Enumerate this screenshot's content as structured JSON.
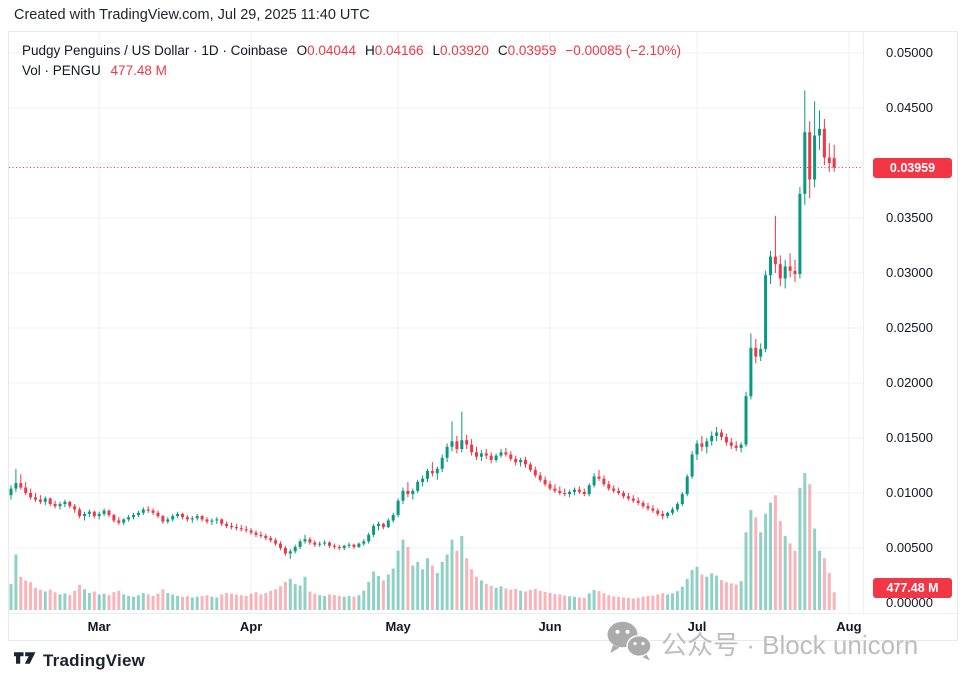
{
  "topbar": {
    "text": "Created with TradingView.com, Jul 29, 2025 11:40 UTC"
  },
  "legend": {
    "symbol": "Pudgy Penguins / US Dollar · 1D · Coinbase",
    "o_label": "O",
    "o_value": "0.04044",
    "h_label": "H",
    "h_value": "0.04166",
    "l_label": "L",
    "l_value": "0.03920",
    "c_label": "C",
    "c_value": "0.03959",
    "change": "−0.00085 (−2.10%)",
    "vol_label": "Vol · PENGU",
    "vol_value": "477.48 M"
  },
  "colors": {
    "up": "#089981",
    "down": "#f23645",
    "volume_up": "rgba(8,153,129,0.45)",
    "volume_down": "rgba(242,54,69,0.38)",
    "grid": "#eef1f7",
    "axis_text": "#131722",
    "badge": "#f23645",
    "watermark": "#bdbdbd"
  },
  "axis": {
    "price_ticks": [
      {
        "label": "0.05000",
        "value": 0.05
      },
      {
        "label": "0.04500",
        "value": 0.045
      },
      {
        "label": "0.03500",
        "value": 0.035
      },
      {
        "label": "0.03000",
        "value": 0.03
      },
      {
        "label": "0.02500",
        "value": 0.025
      },
      {
        "label": "0.02000",
        "value": 0.02
      },
      {
        "label": "0.01500",
        "value": 0.015
      },
      {
        "label": "0.01000",
        "value": 0.01
      },
      {
        "label": "0.00500",
        "value": 0.005
      },
      {
        "label": "0.00000",
        "value": 0
      }
    ],
    "last_price_label": "0.03959",
    "volume_label": "477.48 M",
    "months": [
      {
        "label": "Mar",
        "day": 18
      },
      {
        "label": "Apr",
        "day": 49
      },
      {
        "label": "May",
        "day": 79
      },
      {
        "label": "Jun",
        "day": 110
      },
      {
        "label": "Jul",
        "day": 140
      },
      {
        "label": "Aug",
        "day": 171
      }
    ]
  },
  "watermark": {
    "text": "公众号 · Block unicorn",
    "icon": "wechat-icon"
  },
  "footer": {
    "logo_text": "TradingView"
  },
  "chart_data": {
    "type": "candlestick",
    "title": "Pudgy Penguins / US Dollar",
    "interval": "1D",
    "exchange": "Coinbase",
    "current": {
      "open": 0.04044,
      "high": 0.04166,
      "low": 0.0392,
      "close": 0.03959,
      "change": -0.00085,
      "change_pct": -2.1,
      "volume": "477.48 M"
    },
    "last_price": 0.03959,
    "y_axis": {
      "min": 0,
      "max": 0.05,
      "step": 0.005
    },
    "x_axis_months": [
      "Mar",
      "Apr",
      "May",
      "Jun",
      "Jul",
      "Aug"
    ],
    "volume_axis_max": 3700,
    "volume_unit": "M",
    "candles_format": [
      "open",
      "high",
      "low",
      "close",
      "volume_M"
    ],
    "candles": [
      [
        0.0098,
        0.0107,
        0.0094,
        0.0104,
        700
      ],
      [
        0.0104,
        0.0122,
        0.0101,
        0.0109,
        1500
      ],
      [
        0.0109,
        0.0117,
        0.0103,
        0.0105,
        900
      ],
      [
        0.0105,
        0.011,
        0.0098,
        0.01,
        800
      ],
      [
        0.01,
        0.0104,
        0.0094,
        0.0096,
        750
      ],
      [
        0.0096,
        0.01,
        0.0092,
        0.0094,
        600
      ],
      [
        0.0094,
        0.0098,
        0.009,
        0.0092,
        550
      ],
      [
        0.0092,
        0.0097,
        0.0089,
        0.0095,
        500
      ],
      [
        0.0095,
        0.0096,
        0.0088,
        0.009,
        550
      ],
      [
        0.009,
        0.0093,
        0.0086,
        0.0088,
        480
      ],
      [
        0.0088,
        0.0092,
        0.0085,
        0.009,
        420
      ],
      [
        0.009,
        0.0094,
        0.0087,
        0.0092,
        450
      ],
      [
        0.0092,
        0.0093,
        0.0086,
        0.0088,
        400
      ],
      [
        0.0088,
        0.009,
        0.0082,
        0.0085,
        520
      ],
      [
        0.0085,
        0.0087,
        0.0077,
        0.0079,
        680
      ],
      [
        0.0079,
        0.0083,
        0.0075,
        0.0081,
        560
      ],
      [
        0.0081,
        0.0085,
        0.0078,
        0.0083,
        460
      ],
      [
        0.0083,
        0.0084,
        0.0077,
        0.0079,
        500
      ],
      [
        0.0079,
        0.0083,
        0.0076,
        0.0081,
        420
      ],
      [
        0.0081,
        0.0086,
        0.0079,
        0.0084,
        440
      ],
      [
        0.0084,
        0.0085,
        0.0078,
        0.008,
        400
      ],
      [
        0.008,
        0.0081,
        0.0073,
        0.0075,
        480
      ],
      [
        0.0075,
        0.0078,
        0.0071,
        0.0073,
        520
      ],
      [
        0.0073,
        0.0077,
        0.0071,
        0.0076,
        420
      ],
      [
        0.0076,
        0.008,
        0.0074,
        0.0078,
        380
      ],
      [
        0.0078,
        0.0082,
        0.0076,
        0.008,
        360
      ],
      [
        0.008,
        0.0084,
        0.0078,
        0.0082,
        400
      ],
      [
        0.0082,
        0.0087,
        0.008,
        0.0085,
        460
      ],
      [
        0.0085,
        0.0088,
        0.0082,
        0.0084,
        420
      ],
      [
        0.0084,
        0.0086,
        0.008,
        0.0082,
        380
      ],
      [
        0.0082,
        0.0084,
        0.0077,
        0.0079,
        440
      ],
      [
        0.0079,
        0.008,
        0.0072,
        0.0074,
        560
      ],
      [
        0.0074,
        0.0078,
        0.0072,
        0.0076,
        460
      ],
      [
        0.0076,
        0.0081,
        0.0074,
        0.0079,
        420
      ],
      [
        0.0079,
        0.0083,
        0.0077,
        0.0081,
        380
      ],
      [
        0.0081,
        0.0082,
        0.0076,
        0.0078,
        360
      ],
      [
        0.0078,
        0.008,
        0.0074,
        0.0076,
        380
      ],
      [
        0.0076,
        0.0079,
        0.0073,
        0.0077,
        340
      ],
      [
        0.0077,
        0.0081,
        0.0075,
        0.0079,
        360
      ],
      [
        0.0079,
        0.008,
        0.0074,
        0.0076,
        380
      ],
      [
        0.0076,
        0.0078,
        0.0072,
        0.0074,
        400
      ],
      [
        0.0074,
        0.0077,
        0.0071,
        0.0075,
        360
      ],
      [
        0.0075,
        0.0078,
        0.0072,
        0.0076,
        340
      ],
      [
        0.0076,
        0.0077,
        0.007,
        0.0072,
        420
      ],
      [
        0.0072,
        0.0074,
        0.0068,
        0.007,
        460
      ],
      [
        0.007,
        0.0073,
        0.0067,
        0.0069,
        440
      ],
      [
        0.0069,
        0.0072,
        0.0066,
        0.0068,
        420
      ],
      [
        0.0068,
        0.0071,
        0.0065,
        0.0067,
        400
      ],
      [
        0.0067,
        0.007,
        0.0064,
        0.0066,
        380
      ],
      [
        0.0066,
        0.0068,
        0.0062,
        0.0064,
        440
      ],
      [
        0.0064,
        0.0066,
        0.006,
        0.0062,
        480
      ],
      [
        0.0062,
        0.0065,
        0.0059,
        0.0061,
        420
      ],
      [
        0.0061,
        0.0063,
        0.0057,
        0.0059,
        460
      ],
      [
        0.0059,
        0.0061,
        0.0055,
        0.0057,
        520
      ],
      [
        0.0057,
        0.0059,
        0.0052,
        0.0054,
        560
      ],
      [
        0.0054,
        0.0056,
        0.0048,
        0.005,
        640
      ],
      [
        0.005,
        0.0052,
        0.0043,
        0.0045,
        760
      ],
      [
        0.0045,
        0.0049,
        0.004,
        0.0047,
        840
      ],
      [
        0.0047,
        0.0053,
        0.0045,
        0.0051,
        700
      ],
      [
        0.0051,
        0.0058,
        0.0049,
        0.0056,
        660
      ],
      [
        0.0056,
        0.0062,
        0.0054,
        0.0058,
        900
      ],
      [
        0.0058,
        0.006,
        0.0053,
        0.0055,
        500
      ],
      [
        0.0055,
        0.0057,
        0.0051,
        0.0053,
        440
      ],
      [
        0.0053,
        0.0056,
        0.0051,
        0.0054,
        400
      ],
      [
        0.0054,
        0.0057,
        0.0052,
        0.0055,
        380
      ],
      [
        0.0055,
        0.0056,
        0.005,
        0.0052,
        420
      ],
      [
        0.0052,
        0.0054,
        0.0049,
        0.0051,
        400
      ],
      [
        0.0051,
        0.0053,
        0.0048,
        0.005,
        380
      ],
      [
        0.005,
        0.0053,
        0.0048,
        0.0052,
        360
      ],
      [
        0.0052,
        0.0055,
        0.005,
        0.0053,
        380
      ],
      [
        0.0053,
        0.0054,
        0.0049,
        0.0051,
        360
      ],
      [
        0.0051,
        0.0055,
        0.005,
        0.0054,
        400
      ],
      [
        0.0054,
        0.0058,
        0.0052,
        0.0056,
        520
      ],
      [
        0.0056,
        0.0064,
        0.0054,
        0.0062,
        760
      ],
      [
        0.0062,
        0.0072,
        0.006,
        0.007,
        1040
      ],
      [
        0.007,
        0.0074,
        0.0066,
        0.0072,
        920
      ],
      [
        0.0072,
        0.0073,
        0.0067,
        0.0069,
        800
      ],
      [
        0.0069,
        0.0077,
        0.0068,
        0.0075,
        960
      ],
      [
        0.0075,
        0.0082,
        0.0073,
        0.008,
        1120
      ],
      [
        0.008,
        0.0095,
        0.0078,
        0.0093,
        1600
      ],
      [
        0.0093,
        0.0105,
        0.009,
        0.0102,
        1900
      ],
      [
        0.0102,
        0.011,
        0.0096,
        0.0099,
        1700
      ],
      [
        0.0099,
        0.0104,
        0.0094,
        0.0102,
        1200
      ],
      [
        0.0102,
        0.0112,
        0.01,
        0.011,
        1300
      ],
      [
        0.011,
        0.0116,
        0.0106,
        0.0113,
        1100
      ],
      [
        0.0113,
        0.0122,
        0.011,
        0.012,
        1400
      ],
      [
        0.012,
        0.0128,
        0.0115,
        0.0118,
        1200
      ],
      [
        0.0118,
        0.0124,
        0.0112,
        0.0122,
        1000
      ],
      [
        0.0122,
        0.0135,
        0.0119,
        0.0132,
        1300
      ],
      [
        0.0132,
        0.0145,
        0.0128,
        0.0142,
        1500
      ],
      [
        0.0142,
        0.0165,
        0.0138,
        0.0147,
        1900
      ],
      [
        0.0147,
        0.0152,
        0.0136,
        0.014,
        1600
      ],
      [
        0.014,
        0.0174,
        0.0137,
        0.0148,
        2000
      ],
      [
        0.0148,
        0.0153,
        0.014,
        0.0144,
        1400
      ],
      [
        0.0144,
        0.0149,
        0.0134,
        0.0137,
        1100
      ],
      [
        0.0137,
        0.0142,
        0.013,
        0.0133,
        900
      ],
      [
        0.0133,
        0.0139,
        0.0129,
        0.0136,
        800
      ],
      [
        0.0136,
        0.014,
        0.0131,
        0.0134,
        700
      ],
      [
        0.0134,
        0.0137,
        0.0127,
        0.013,
        650
      ],
      [
        0.013,
        0.0136,
        0.0128,
        0.0134,
        600
      ],
      [
        0.0134,
        0.014,
        0.0132,
        0.0137,
        640
      ],
      [
        0.0137,
        0.0141,
        0.0133,
        0.0135,
        580
      ],
      [
        0.0135,
        0.0138,
        0.0129,
        0.0131,
        550
      ],
      [
        0.0131,
        0.0134,
        0.0125,
        0.0128,
        570
      ],
      [
        0.0128,
        0.0132,
        0.0124,
        0.013,
        520
      ],
      [
        0.013,
        0.0133,
        0.0123,
        0.0126,
        500
      ],
      [
        0.0126,
        0.0128,
        0.0119,
        0.0121,
        540
      ],
      [
        0.0121,
        0.0124,
        0.0114,
        0.0116,
        570
      ],
      [
        0.0116,
        0.0119,
        0.011,
        0.0112,
        520
      ],
      [
        0.0112,
        0.0115,
        0.0106,
        0.0108,
        490
      ],
      [
        0.0108,
        0.0111,
        0.0102,
        0.0104,
        460
      ],
      [
        0.0104,
        0.0108,
        0.01,
        0.0102,
        430
      ],
      [
        0.0102,
        0.0106,
        0.0098,
        0.01,
        420
      ],
      [
        0.01,
        0.0104,
        0.0097,
        0.0099,
        390
      ],
      [
        0.0099,
        0.0103,
        0.0096,
        0.0101,
        370
      ],
      [
        0.0101,
        0.0105,
        0.0098,
        0.0103,
        360
      ],
      [
        0.0103,
        0.0106,
        0.0099,
        0.0101,
        340
      ],
      [
        0.0101,
        0.0104,
        0.0097,
        0.0099,
        330
      ],
      [
        0.0099,
        0.0109,
        0.0097,
        0.0107,
        450
      ],
      [
        0.0107,
        0.0118,
        0.0105,
        0.0115,
        540
      ],
      [
        0.0115,
        0.0121,
        0.0111,
        0.0113,
        510
      ],
      [
        0.0113,
        0.0116,
        0.0106,
        0.0108,
        450
      ],
      [
        0.0108,
        0.0111,
        0.0102,
        0.0104,
        400
      ],
      [
        0.0104,
        0.0107,
        0.01,
        0.0102,
        370
      ],
      [
        0.0102,
        0.0105,
        0.0098,
        0.01,
        360
      ],
      [
        0.01,
        0.0102,
        0.0095,
        0.0097,
        340
      ],
      [
        0.0097,
        0.01,
        0.0093,
        0.0095,
        330
      ],
      [
        0.0095,
        0.0098,
        0.0091,
        0.0093,
        310
      ],
      [
        0.0093,
        0.0096,
        0.0089,
        0.0091,
        330
      ],
      [
        0.0091,
        0.0093,
        0.0086,
        0.0088,
        360
      ],
      [
        0.0088,
        0.0091,
        0.0084,
        0.0086,
        380
      ],
      [
        0.0086,
        0.0089,
        0.0082,
        0.0084,
        390
      ],
      [
        0.0084,
        0.0086,
        0.0079,
        0.0081,
        420
      ],
      [
        0.0081,
        0.0084,
        0.0076,
        0.0079,
        450
      ],
      [
        0.0079,
        0.0083,
        0.0077,
        0.0082,
        420
      ],
      [
        0.0082,
        0.0087,
        0.008,
        0.0085,
        450
      ],
      [
        0.0085,
        0.0092,
        0.0083,
        0.009,
        510
      ],
      [
        0.009,
        0.0101,
        0.0088,
        0.0099,
        630
      ],
      [
        0.0099,
        0.0117,
        0.0097,
        0.0115,
        840
      ],
      [
        0.0115,
        0.0138,
        0.0113,
        0.0135,
        1080
      ],
      [
        0.0135,
        0.0148,
        0.013,
        0.0145,
        1170
      ],
      [
        0.0145,
        0.0152,
        0.0138,
        0.0142,
        960
      ],
      [
        0.0142,
        0.015,
        0.0136,
        0.0147,
        900
      ],
      [
        0.0147,
        0.0156,
        0.0143,
        0.0152,
        990
      ],
      [
        0.0152,
        0.016,
        0.0147,
        0.0155,
        930
      ],
      [
        0.0155,
        0.0158,
        0.0148,
        0.0151,
        810
      ],
      [
        0.0151,
        0.0154,
        0.0143,
        0.0146,
        750
      ],
      [
        0.0146,
        0.015,
        0.014,
        0.0143,
        720
      ],
      [
        0.0143,
        0.0147,
        0.0138,
        0.0141,
        690
      ],
      [
        0.0141,
        0.0146,
        0.0137,
        0.0144,
        780
      ],
      [
        0.0144,
        0.0192,
        0.0142,
        0.0188,
        2100
      ],
      [
        0.0188,
        0.0245,
        0.0185,
        0.0232,
        2700
      ],
      [
        0.0232,
        0.024,
        0.0218,
        0.0224,
        2500
      ],
      [
        0.0224,
        0.0236,
        0.022,
        0.0231,
        2100
      ],
      [
        0.0231,
        0.0302,
        0.0228,
        0.0298,
        2600
      ],
      [
        0.0298,
        0.032,
        0.029,
        0.0315,
        2900
      ],
      [
        0.0315,
        0.0352,
        0.03,
        0.0308,
        3100
      ],
      [
        0.0308,
        0.0316,
        0.0288,
        0.0295,
        2400
      ],
      [
        0.0295,
        0.0312,
        0.0286,
        0.0306,
        2000
      ],
      [
        0.0306,
        0.0318,
        0.0296,
        0.0302,
        1800
      ],
      [
        0.0302,
        0.0312,
        0.0292,
        0.0299,
        1600
      ],
      [
        0.0299,
        0.0378,
        0.0295,
        0.0372,
        3300
      ],
      [
        0.0372,
        0.0466,
        0.0362,
        0.0428,
        3700
      ],
      [
        0.0428,
        0.0438,
        0.0368,
        0.0385,
        3400
      ],
      [
        0.0385,
        0.0456,
        0.0378,
        0.0425,
        2200
      ],
      [
        0.0425,
        0.0448,
        0.0412,
        0.0431,
        1600
      ],
      [
        0.0431,
        0.044,
        0.0398,
        0.0405,
        1400
      ],
      [
        0.0405,
        0.0418,
        0.0392,
        0.04,
        1000
      ],
      [
        0.04044,
        0.04166,
        0.0392,
        0.03959,
        477.48
      ]
    ]
  }
}
